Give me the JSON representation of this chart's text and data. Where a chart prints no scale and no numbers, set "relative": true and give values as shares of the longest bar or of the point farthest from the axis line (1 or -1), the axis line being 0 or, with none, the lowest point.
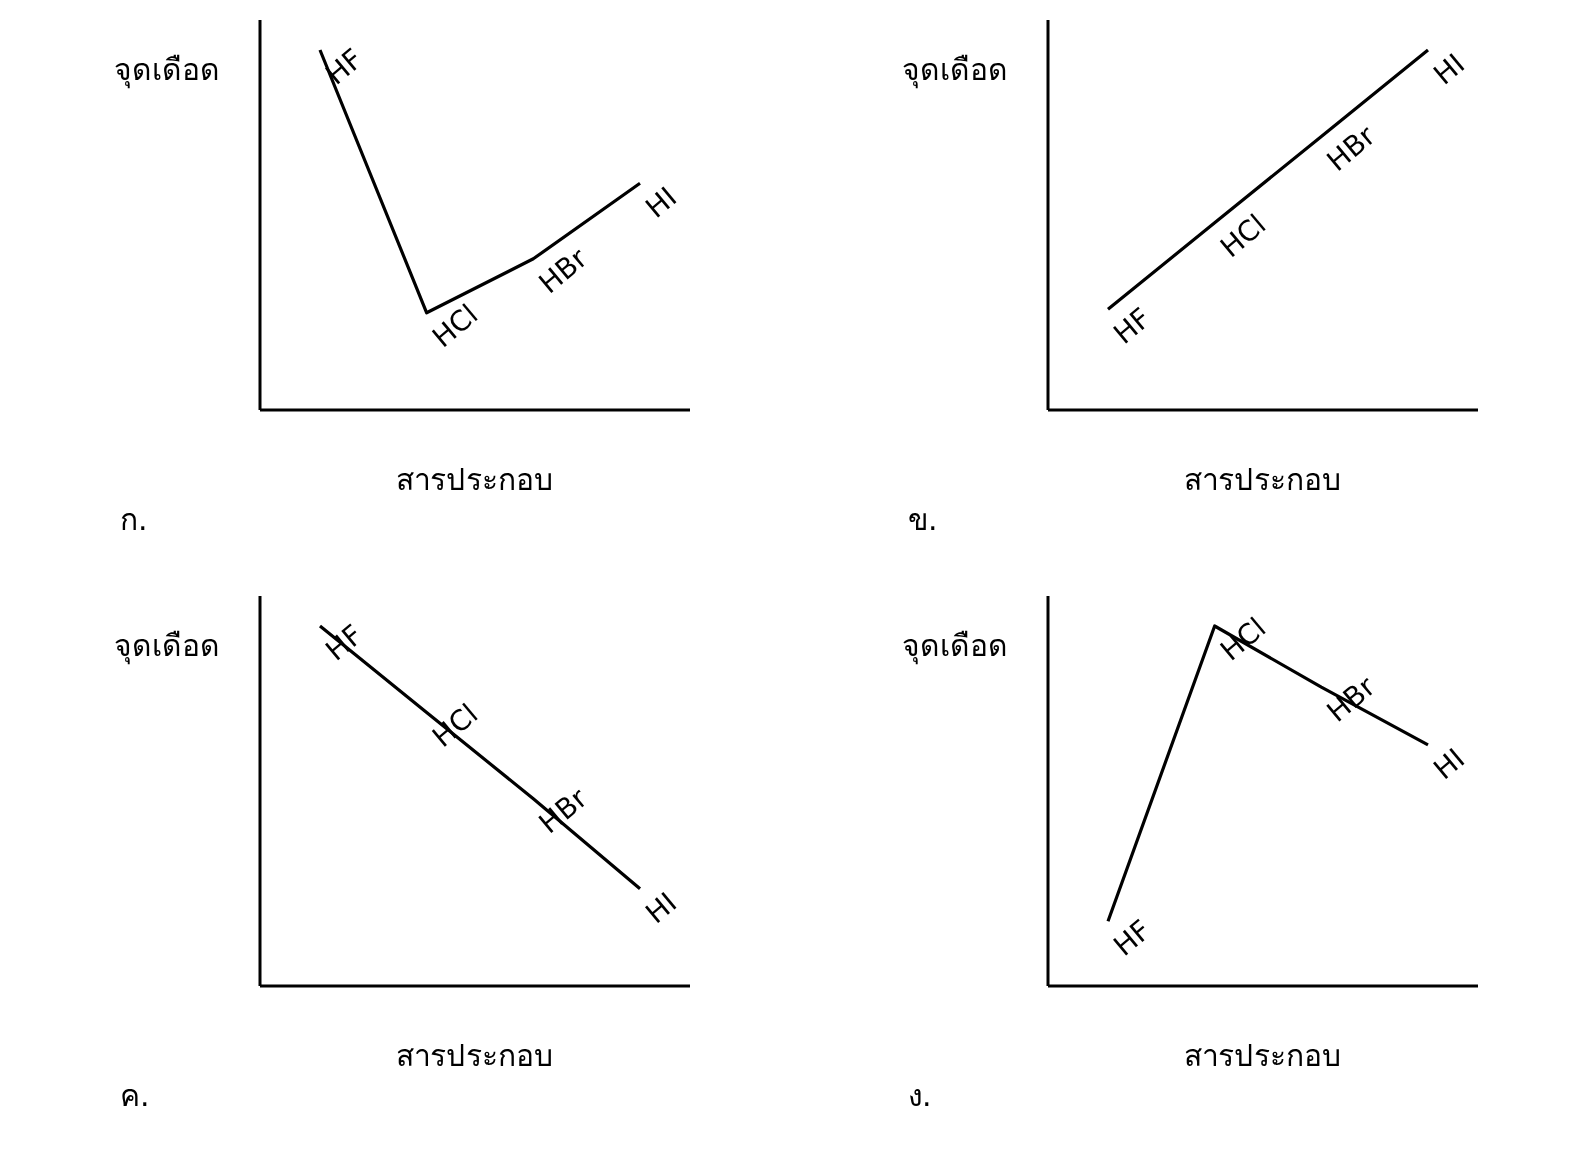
{
  "chart_data": [
    {
      "type": "line",
      "title": "ก.",
      "ylabel": "จุดเดือด",
      "xlabel": "สารประกอบ",
      "categories": [
        null,
        null,
        null,
        null
      ],
      "relative": true,
      "series": [
        {
          "color": "#000000",
          "values": [
            1,
            0.27,
            0.42,
            0.63
          ]
        }
      ],
      "annotations": [
        "HF",
        "HCl",
        "HBr",
        "HI"
      ]
    },
    {
      "type": "line",
      "title": "ข.",
      "ylabel": "จุดเดือด",
      "xlabel": "สารประกอบ",
      "categories": [
        null,
        null,
        null,
        null
      ],
      "relative": true,
      "series": [
        {
          "color": "#000000",
          "values": [
            0.28,
            0.52,
            0.76,
            1
          ]
        }
      ],
      "annotations": [
        "HF",
        "HCl",
        "HBr",
        "HI"
      ]
    },
    {
      "type": "line",
      "title": "ค.",
      "ylabel": "จุดเดือด",
      "xlabel": "สารประกอบ",
      "categories": [
        null,
        null,
        null,
        null
      ],
      "relative": true,
      "series": [
        {
          "color": "#000000",
          "values": [
            1,
            0.76,
            0.52,
            0.27
          ]
        }
      ],
      "annotations": [
        "HF",
        "HCl",
        "HBr",
        "HI"
      ]
    },
    {
      "type": "line",
      "title": "ง.",
      "ylabel": "จุดเดือด",
      "xlabel": "สารประกอบ",
      "categories": [
        null,
        null,
        null,
        null
      ],
      "relative": true,
      "series": [
        {
          "color": "#000000",
          "values": [
            0.18,
            1,
            0.83,
            0.67
          ]
        }
      ],
      "annotations": [
        "HF",
        "HCl",
        "HBr",
        "HI"
      ]
    }
  ]
}
